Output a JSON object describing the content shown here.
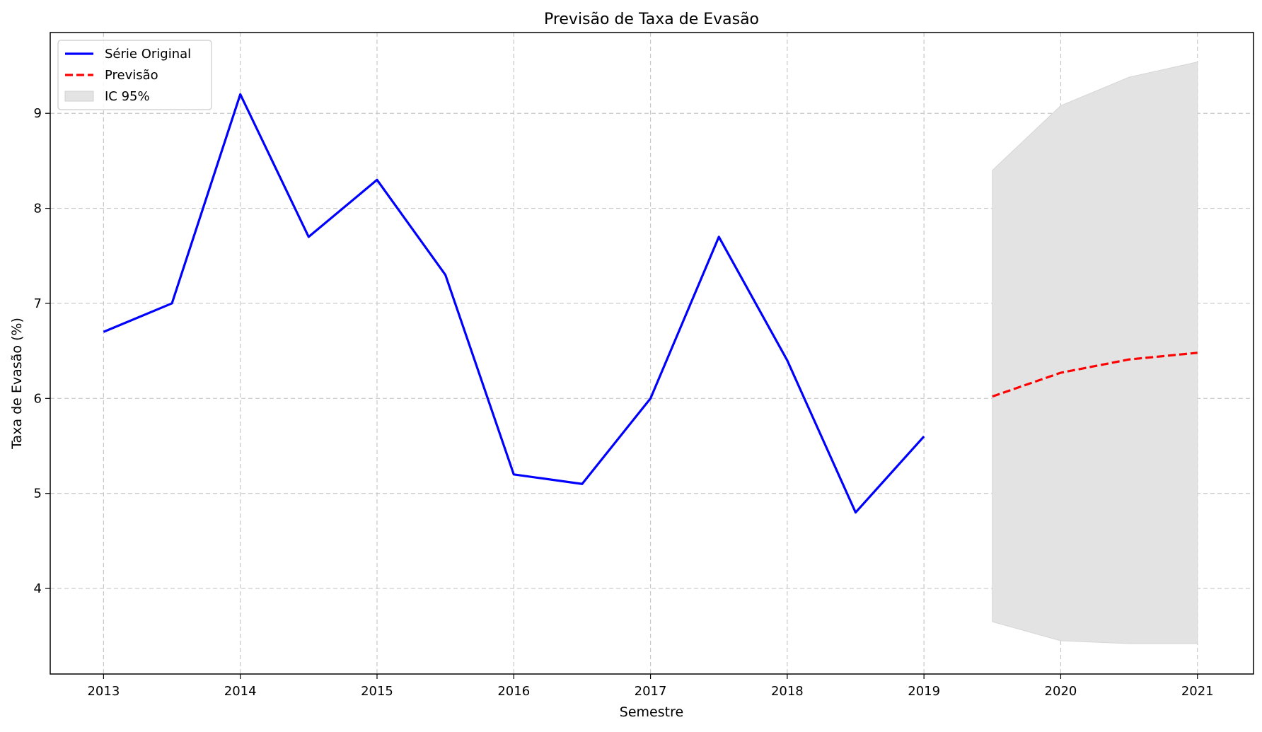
{
  "chart_data": {
    "type": "line",
    "title": "Previsão de Taxa de Evasão",
    "xlabel": "Semestre",
    "ylabel": "Taxa de Evasão (%)",
    "xlim": [
      2012.61,
      2021.41
    ],
    "ylim": [
      3.1,
      9.85
    ],
    "x_ticks": [
      2013,
      2014,
      2015,
      2016,
      2017,
      2018,
      2019,
      2020,
      2021
    ],
    "y_ticks": [
      4,
      5,
      6,
      7,
      8,
      9
    ],
    "grid": true,
    "legend_position": "top-left",
    "series": [
      {
        "name": "Série Original",
        "style": "solid",
        "color": "#0000ff",
        "x": [
          2013.0,
          2013.5,
          2014.0,
          2014.5,
          2015.0,
          2015.5,
          2016.0,
          2016.5,
          2017.0,
          2017.5,
          2018.0,
          2018.5,
          2019.0
        ],
        "values": [
          6.7,
          7.0,
          9.2,
          7.7,
          8.3,
          7.3,
          5.2,
          5.1,
          6.0,
          7.7,
          6.4,
          4.8,
          5.6
        ]
      },
      {
        "name": "Previsão",
        "style": "dashed",
        "color": "#ff0000",
        "x": [
          2019.5,
          2020.0,
          2020.5,
          2021.0
        ],
        "values": [
          6.02,
          6.27,
          6.41,
          6.48
        ]
      }
    ],
    "interval": {
      "name": "IC 95%",
      "color": "#e3e3e3",
      "x": [
        2019.5,
        2020.0,
        2020.5,
        2021.0
      ],
      "lower": [
        3.65,
        3.45,
        3.42,
        3.42
      ],
      "upper": [
        8.4,
        9.08,
        9.38,
        9.54
      ]
    }
  }
}
